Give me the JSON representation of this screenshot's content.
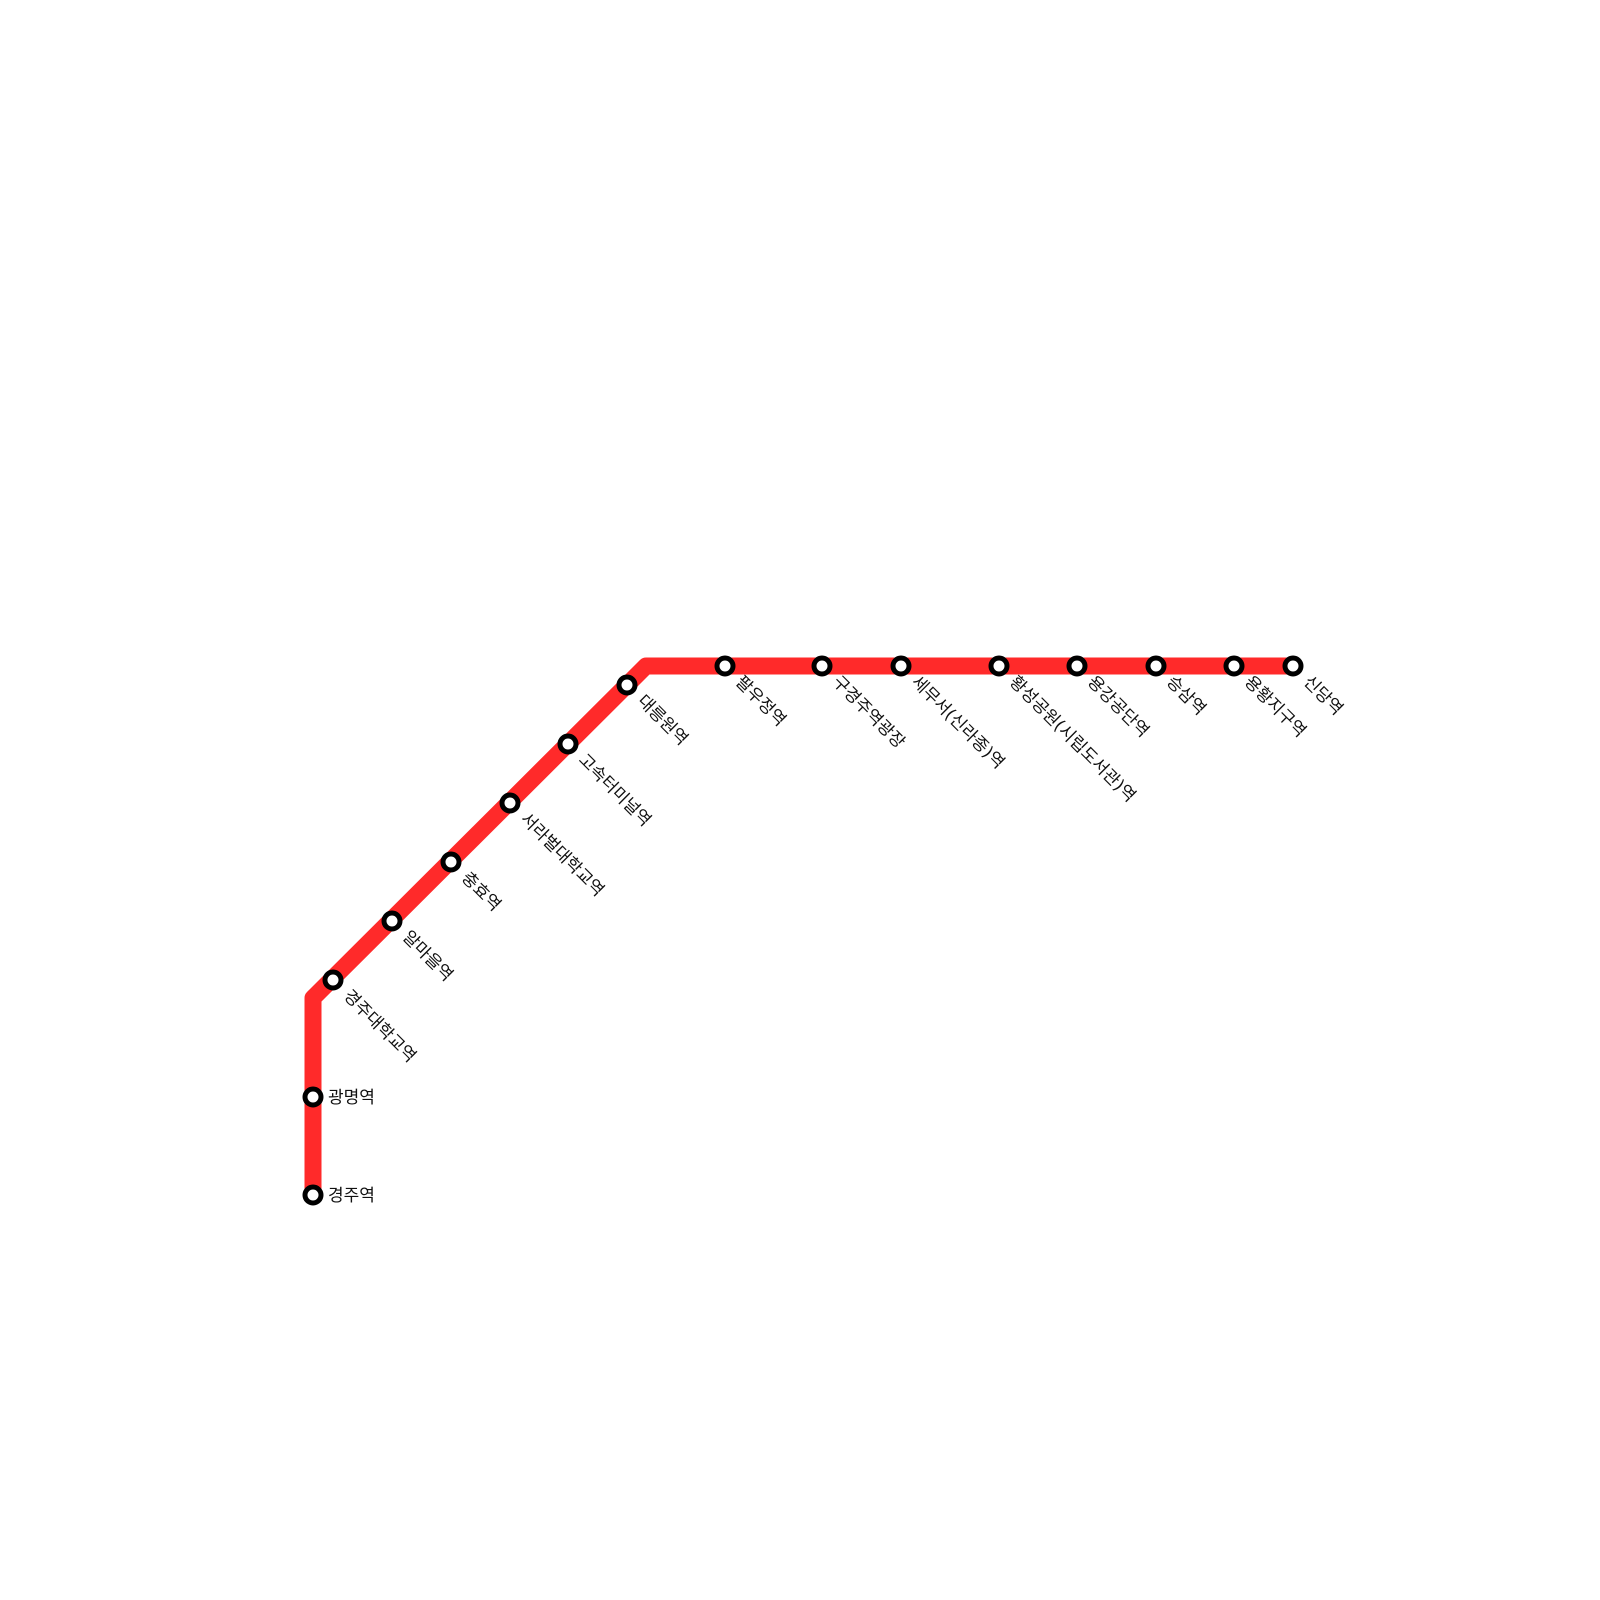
{
  "line": {
    "color": "#ff2a2a",
    "station_stroke": "#000000",
    "station_fill": "#ffffff"
  },
  "stations": [
    {
      "name": "경주역",
      "label_orientation": "horizontal"
    },
    {
      "name": "광명역",
      "label_orientation": "horizontal"
    },
    {
      "name": "경주대학교역",
      "label_orientation": "diagonal"
    },
    {
      "name": "알마을역",
      "label_orientation": "diagonal"
    },
    {
      "name": "충효역",
      "label_orientation": "diagonal"
    },
    {
      "name": "서라벌대학교역",
      "label_orientation": "diagonal"
    },
    {
      "name": "고속터미널역",
      "label_orientation": "diagonal"
    },
    {
      "name": "대릉원역",
      "label_orientation": "diagonal"
    },
    {
      "name": "팔우정역",
      "label_orientation": "diagonal"
    },
    {
      "name": "구경주역광장",
      "label_orientation": "diagonal"
    },
    {
      "name": "세무서(신라종)역",
      "label_orientation": "diagonal"
    },
    {
      "name": "황성공원(시립도서관)역",
      "label_orientation": "diagonal"
    },
    {
      "name": "용강공단역",
      "label_orientation": "diagonal"
    },
    {
      "name": "승삼역",
      "label_orientation": "diagonal"
    },
    {
      "name": "용황지구역",
      "label_orientation": "diagonal"
    },
    {
      "name": "신당역",
      "label_orientation": "diagonal"
    }
  ]
}
